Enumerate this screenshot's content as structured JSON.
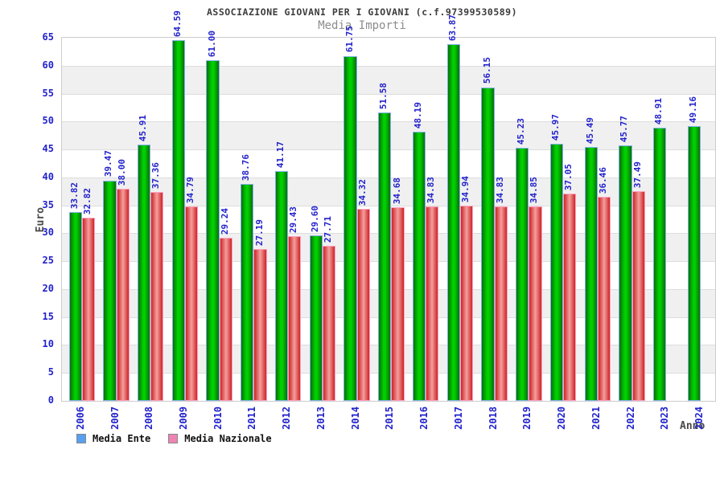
{
  "chart_data": {
    "type": "bar",
    "title": "ASSOCIAZIONE GIOVANI PER I GIOVANI (c.f.97399530589)",
    "subtitle": "Media Importi",
    "xlabel": "Anno",
    "ylabel": "Euro",
    "ylim": [
      0,
      65
    ],
    "ytick_step": 5,
    "grid": "horizontal-bands",
    "legend_position": "bottom-left",
    "categories": [
      "2006",
      "2007",
      "2008",
      "2009",
      "2010",
      "2011",
      "2012",
      "2013",
      "2014",
      "2015",
      "2016",
      "2017",
      "2018",
      "2019",
      "2020",
      "2021",
      "2022",
      "2023",
      "2024"
    ],
    "series": [
      {
        "name": "Media Ente",
        "values": [
          33.82,
          39.47,
          45.91,
          64.59,
          61.0,
          38.76,
          41.17,
          29.6,
          61.75,
          51.58,
          48.19,
          63.87,
          56.15,
          45.23,
          45.97,
          45.49,
          45.77,
          48.91,
          49.16
        ]
      },
      {
        "name": "Media Nazionale",
        "values": [
          32.82,
          38.0,
          37.36,
          34.79,
          29.24,
          27.19,
          29.43,
          27.71,
          34.32,
          34.68,
          34.83,
          34.94,
          34.83,
          34.85,
          37.05,
          36.46,
          37.49,
          null,
          null
        ]
      }
    ],
    "colors": {
      "bar_green": "#00cf00",
      "bar_green_edge": "#0a6e0a",
      "bar_green_border": "#7fb2e2",
      "bar_red": "#cc2525",
      "bar_red_center": "#f59e9e",
      "bar_red_border": "#ff9fc0",
      "label_blue": "#2222cc",
      "band_gray": "#f0f0f0",
      "gridline_gray": "#dddddd",
      "plot_border": "#cccccc",
      "title_color": "#3c3c3c",
      "subtitle_color": "#8c8c8c",
      "axis_title_color": "#4a4a4a",
      "legend_ente_swatch": "#58a0f0",
      "legend_nazionale_swatch": "#ee84b4"
    }
  }
}
